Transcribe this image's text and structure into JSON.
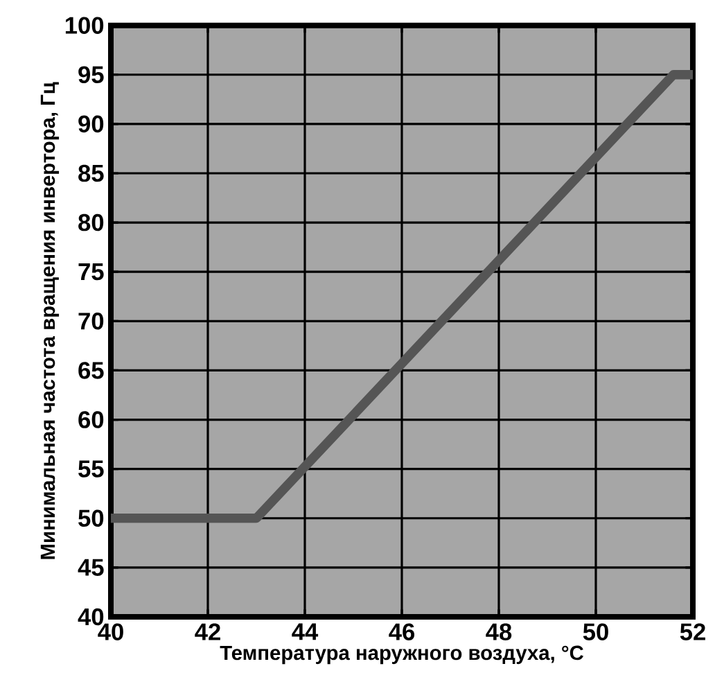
{
  "chart_data": {
    "type": "line",
    "xlabel": "Температура наружного воздуха, °C",
    "ylabel": "Минимальная частота вращения инвертора, Гц",
    "x": [
      40,
      43,
      51.6,
      52
    ],
    "series": [
      {
        "color": "#555555",
        "values": [
          50,
          50,
          95,
          95
        ]
      }
    ],
    "xlim": [
      40,
      52
    ],
    "xticks": [
      40,
      42,
      44,
      46,
      48,
      50,
      52
    ],
    "ylim": [
      40,
      100
    ],
    "yticks": [
      40,
      45,
      50,
      55,
      60,
      65,
      70,
      75,
      80,
      85,
      90,
      95,
      100
    ],
    "grid": true,
    "marker": "none",
    "line_style": "solid"
  }
}
